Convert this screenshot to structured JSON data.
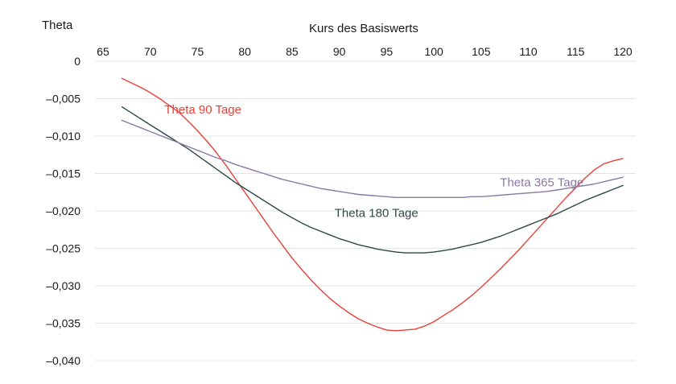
{
  "chart_data": {
    "type": "line",
    "title": "",
    "xlabel": "Kurs des Basiswerts",
    "ylabel": "Theta",
    "xlim": [
      65,
      120
    ],
    "ylim": [
      -0.04,
      0
    ],
    "x_ticks": [
      65,
      70,
      75,
      80,
      85,
      90,
      95,
      100,
      105,
      110,
      115,
      120
    ],
    "x_tick_labels": [
      "65",
      "70",
      "75",
      "80",
      "85",
      "90",
      "95",
      "100",
      "105",
      "110",
      "115",
      "120"
    ],
    "y_ticks": [
      0,
      -0.005,
      -0.01,
      -0.015,
      -0.02,
      -0.025,
      -0.03,
      -0.035,
      -0.04
    ],
    "y_tick_labels": [
      "0",
      "–0,005",
      "–0,010",
      "–0,015",
      "–0,020",
      "–0,025",
      "–0,030",
      "–0,035",
      "–0,040"
    ],
    "grid": true,
    "legend": "inline labels",
    "series": [
      {
        "name": "Theta 90 Tage",
        "color": "#e8413a",
        "label_at": [
          71.5,
          -0.007
        ],
        "x": [
          67,
          68,
          69,
          70,
          71,
          72,
          73,
          74,
          75,
          76,
          77,
          78,
          79,
          80,
          81,
          82,
          83,
          84,
          85,
          86,
          87,
          88,
          89,
          90,
          91,
          92,
          93,
          94,
          95,
          96,
          97,
          98,
          99,
          100,
          101,
          102,
          103,
          104,
          105,
          106,
          107,
          108,
          109,
          110,
          111,
          112,
          113,
          114,
          115,
          116,
          117,
          118,
          119,
          120
        ],
        "y": [
          -0.0023,
          -0.0029,
          -0.0035,
          -0.0042,
          -0.005,
          -0.0059,
          -0.0068,
          -0.008,
          -0.0093,
          -0.0107,
          -0.0122,
          -0.0139,
          -0.0157,
          -0.0175,
          -0.0193,
          -0.0211,
          -0.0229,
          -0.0246,
          -0.0263,
          -0.0278,
          -0.0292,
          -0.0305,
          -0.0317,
          -0.0327,
          -0.0336,
          -0.0344,
          -0.035,
          -0.0355,
          -0.0359,
          -0.036,
          -0.0359,
          -0.0358,
          -0.0354,
          -0.0348,
          -0.034,
          -0.0332,
          -0.0323,
          -0.0313,
          -0.0302,
          -0.029,
          -0.0278,
          -0.0265,
          -0.0252,
          -0.0238,
          -0.0224,
          -0.021,
          -0.0196,
          -0.0182,
          -0.0169,
          -0.0156,
          -0.0145,
          -0.0137,
          -0.0133,
          -0.013
        ]
      },
      {
        "name": "Theta 180 Tage",
        "color": "#2e4a47",
        "label_at": [
          89.5,
          -0.0208
        ],
        "x": [
          67,
          68,
          69,
          70,
          71,
          72,
          73,
          74,
          75,
          76,
          77,
          78,
          79,
          80,
          81,
          82,
          83,
          84,
          85,
          86,
          87,
          88,
          89,
          90,
          91,
          92,
          93,
          94,
          95,
          96,
          97,
          98,
          99,
          100,
          101,
          102,
          103,
          104,
          105,
          106,
          107,
          108,
          109,
          110,
          111,
          112,
          113,
          114,
          115,
          116,
          117,
          118,
          119,
          120
        ],
        "y": [
          -0.0061,
          -0.0069,
          -0.0077,
          -0.0085,
          -0.0093,
          -0.0101,
          -0.0109,
          -0.0117,
          -0.0126,
          -0.0135,
          -0.0144,
          -0.0153,
          -0.0162,
          -0.017,
          -0.0178,
          -0.0186,
          -0.0194,
          -0.0202,
          -0.0209,
          -0.0216,
          -0.0222,
          -0.0227,
          -0.0232,
          -0.0237,
          -0.0241,
          -0.0245,
          -0.0248,
          -0.0251,
          -0.0253,
          -0.0255,
          -0.0256,
          -0.0256,
          -0.0256,
          -0.0255,
          -0.0253,
          -0.0251,
          -0.0248,
          -0.0245,
          -0.0242,
          -0.0238,
          -0.0234,
          -0.0229,
          -0.0224,
          -0.0219,
          -0.0214,
          -0.0209,
          -0.0204,
          -0.0198,
          -0.0192,
          -0.0186,
          -0.0181,
          -0.0176,
          -0.0171,
          -0.0166
        ]
      },
      {
        "name": "Theta 365 Tage",
        "color": "#8b79a4",
        "label_at": [
          107,
          -0.0167
        ],
        "x": [
          67,
          68,
          69,
          70,
          71,
          72,
          73,
          74,
          75,
          76,
          77,
          78,
          79,
          80,
          81,
          82,
          83,
          84,
          85,
          86,
          87,
          88,
          89,
          90,
          91,
          92,
          93,
          94,
          95,
          96,
          97,
          98,
          99,
          100,
          101,
          102,
          103,
          104,
          105,
          106,
          107,
          108,
          109,
          110,
          111,
          112,
          113,
          114,
          115,
          116,
          117,
          118,
          119,
          120
        ],
        "y": [
          -0.0079,
          -0.0084,
          -0.0089,
          -0.0094,
          -0.0099,
          -0.0104,
          -0.0109,
          -0.0114,
          -0.0119,
          -0.0124,
          -0.0129,
          -0.0133,
          -0.0138,
          -0.0142,
          -0.0146,
          -0.015,
          -0.0154,
          -0.0158,
          -0.0161,
          -0.0164,
          -0.0167,
          -0.017,
          -0.0172,
          -0.0174,
          -0.0176,
          -0.0178,
          -0.0179,
          -0.018,
          -0.0181,
          -0.0182,
          -0.0182,
          -0.0182,
          -0.0182,
          -0.0182,
          -0.0182,
          -0.0182,
          -0.0182,
          -0.0181,
          -0.0181,
          -0.018,
          -0.0179,
          -0.0178,
          -0.0177,
          -0.0176,
          -0.0175,
          -0.0174,
          -0.0172,
          -0.017,
          -0.0168,
          -0.0166,
          -0.0164,
          -0.0161,
          -0.0158,
          -0.0155
        ]
      }
    ]
  }
}
